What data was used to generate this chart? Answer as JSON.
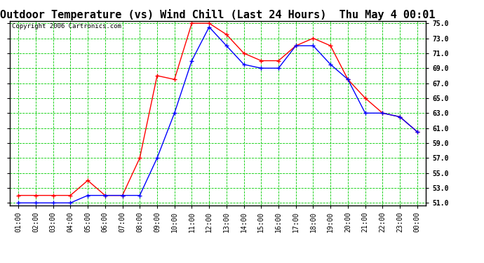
{
  "title": "Outdoor Temperature (vs) Wind Chill (Last 24 Hours)  Thu May 4 00:01",
  "copyright": "Copyright 2006 Cartronics.com",
  "x_labels": [
    "01:00",
    "02:00",
    "03:00",
    "04:00",
    "05:00",
    "06:00",
    "07:00",
    "08:00",
    "09:00",
    "10:00",
    "11:00",
    "12:00",
    "13:00",
    "14:00",
    "15:00",
    "16:00",
    "17:00",
    "18:00",
    "19:00",
    "20:00",
    "21:00",
    "22:00",
    "23:00",
    "00:00"
  ],
  "temp_red": [
    52.0,
    52.0,
    52.0,
    52.0,
    54.0,
    52.0,
    52.0,
    57.0,
    68.0,
    67.5,
    75.0,
    75.0,
    73.5,
    71.0,
    70.0,
    70.0,
    72.0,
    73.0,
    72.0,
    67.5,
    65.0,
    63.0,
    62.5,
    60.5
  ],
  "wind_blue": [
    51.0,
    51.0,
    51.0,
    51.0,
    52.0,
    52.0,
    52.0,
    52.0,
    57.0,
    63.0,
    70.0,
    74.5,
    72.0,
    69.5,
    69.0,
    69.0,
    72.0,
    72.0,
    69.5,
    67.5,
    63.0,
    63.0,
    62.5,
    60.5
  ],
  "ylim_min": 51.0,
  "ylim_max": 75.0,
  "y_ticks": [
    51.0,
    53.0,
    55.0,
    57.0,
    59.0,
    61.0,
    63.0,
    65.0,
    67.0,
    69.0,
    71.0,
    73.0,
    75.0
  ],
  "red_color": "#FF0000",
  "blue_color": "#0000FF",
  "grid_color": "#00CC00",
  "bg_color": "#FFFFFF",
  "plot_bg_color": "#FFFFFF",
  "title_fontsize": 11,
  "copyright_fontsize": 6.5,
  "tick_fontsize": 7,
  "label_color": "#000000"
}
